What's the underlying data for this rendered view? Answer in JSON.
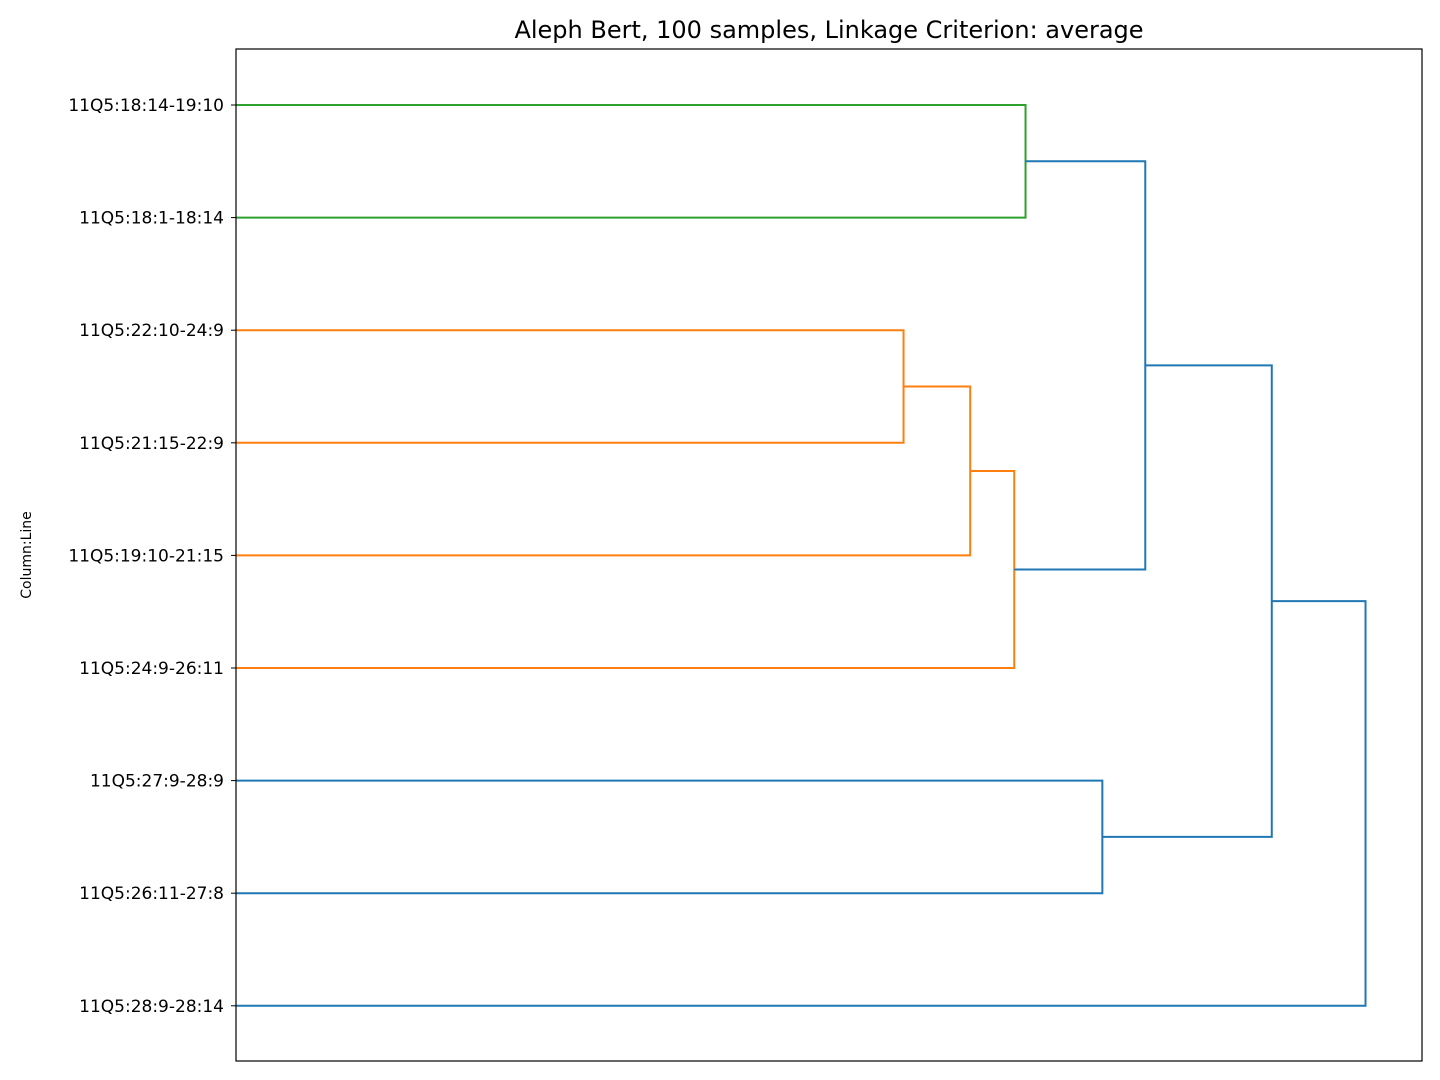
{
  "chart_data": {
    "type": "dendrogram",
    "title": "Aleph Bert, 100 samples, Linkage Criterion: average",
    "xlabel": "",
    "ylabel": "Column:Line",
    "orientation": "left",
    "grid": false,
    "leaves": [
      "11Q5:18:14-19:10",
      "11Q5:18:1-18:14",
      "11Q5:22:10-24:9",
      "11Q5:21:15-22:9",
      "11Q5:19:10-21:15",
      "11Q5:24:9-26:11",
      "11Q5:27:9-28:9",
      "11Q5:26:11-27:8",
      "11Q5:28:9-28:14"
    ],
    "xlim": [
      0,
      105
    ],
    "merges": [
      {
        "left": "11Q5:22:10-24:9",
        "right": "11Q5:21:15-22:9",
        "height": 59.1,
        "color": "#ff7f0e"
      },
      {
        "left": "m0",
        "right": "11Q5:19:10-21:15",
        "height": 65.0,
        "color": "#ff7f0e"
      },
      {
        "left": "m1",
        "right": "11Q5:24:9-26:11",
        "height": 68.9,
        "color": "#ff7f0e"
      },
      {
        "left": "11Q5:18:14-19:10",
        "right": "11Q5:18:1-18:14",
        "height": 69.9,
        "color": "#2ca02c"
      },
      {
        "left": "11Q5:27:9-28:9",
        "right": "11Q5:26:11-27:8",
        "height": 76.7,
        "color": "#1f77b4"
      },
      {
        "left": "m3",
        "right": "m2",
        "height": 80.5,
        "color": "#1f77b4"
      },
      {
        "left": "m5",
        "right": "m4",
        "height": 91.7,
        "color": "#1f77b4"
      },
      {
        "left": "m6",
        "right": "11Q5:28:9-28:14",
        "height": 100.0,
        "color": "#1f77b4"
      }
    ]
  }
}
